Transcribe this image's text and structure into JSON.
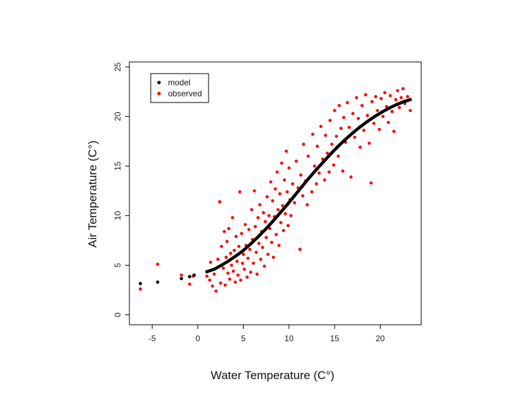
{
  "chart_data": {
    "type": "scatter",
    "title": "",
    "xlabel": "Water Temperature (C°)",
    "ylabel": "Air Temperature (C°)",
    "xlim": [
      -7.5,
      24.5
    ],
    "ylim": [
      -1,
      25.5
    ],
    "xticks": [
      -5,
      0,
      5,
      10,
      15,
      20
    ],
    "yticks": [
      0,
      5,
      10,
      15,
      20,
      25
    ],
    "grid": false,
    "legend": {
      "position": "top-left",
      "entries": [
        "model",
        "observed"
      ]
    },
    "colors": {
      "model": "#000000",
      "observed": "#ff0000"
    },
    "series": [
      {
        "name": "model",
        "color": "#000000",
        "points": [
          [
            -6.3,
            3.15
          ],
          [
            -4.4,
            3.3
          ],
          [
            -1.8,
            3.65
          ],
          [
            -0.9,
            3.85
          ],
          [
            -0.4,
            4.0
          ],
          [
            1.0,
            4.35
          ],
          [
            1.8,
            4.6
          ],
          [
            2.6,
            5.0
          ],
          [
            3.4,
            5.45
          ],
          [
            4.2,
            5.95
          ],
          [
            5.0,
            6.5
          ],
          [
            5.8,
            7.15
          ],
          [
            6.6,
            7.85
          ],
          [
            7.4,
            8.6
          ],
          [
            8.2,
            9.4
          ],
          [
            9.0,
            10.25
          ],
          [
            9.8,
            11.1
          ],
          [
            10.6,
            12.0
          ],
          [
            11.4,
            12.9
          ],
          [
            12.2,
            13.8
          ],
          [
            13.0,
            14.65
          ],
          [
            13.8,
            15.45
          ],
          [
            14.6,
            16.25
          ],
          [
            15.4,
            17.0
          ],
          [
            16.2,
            17.7
          ],
          [
            17.0,
            18.35
          ],
          [
            17.8,
            18.95
          ],
          [
            18.6,
            19.5
          ],
          [
            19.4,
            20.0
          ],
          [
            20.2,
            20.45
          ],
          [
            21.0,
            20.85
          ],
          [
            21.8,
            21.2
          ],
          [
            22.6,
            21.5
          ],
          [
            23.3,
            21.7
          ]
        ]
      },
      {
        "name": "observed",
        "color": "#ff0000",
        "points": [
          [
            -6.3,
            2.6
          ],
          [
            -4.4,
            5.1
          ],
          [
            -1.8,
            4.0
          ],
          [
            -0.9,
            3.1
          ],
          [
            -0.5,
            3.9
          ],
          [
            1.0,
            3.9
          ],
          [
            1.3,
            3.5
          ],
          [
            1.4,
            5.3
          ],
          [
            1.6,
            2.9
          ],
          [
            1.8,
            4.1
          ],
          [
            2.0,
            2.4
          ],
          [
            2.2,
            5.6
          ],
          [
            2.4,
            11.4
          ],
          [
            2.5,
            3.2
          ],
          [
            2.6,
            6.9
          ],
          [
            2.8,
            4.7
          ],
          [
            2.9,
            8.4
          ],
          [
            3.0,
            3.0
          ],
          [
            3.1,
            5.8
          ],
          [
            3.2,
            7.4
          ],
          [
            3.3,
            4.2
          ],
          [
            3.4,
            8.7
          ],
          [
            3.5,
            3.6
          ],
          [
            3.6,
            6.2
          ],
          [
            3.7,
            5.0
          ],
          [
            3.8,
            9.8
          ],
          [
            3.9,
            4.4
          ],
          [
            4.0,
            6.5
          ],
          [
            4.1,
            3.3
          ],
          [
            4.2,
            7.9
          ],
          [
            4.3,
            5.4
          ],
          [
            4.4,
            4.0
          ],
          [
            4.5,
            6.9
          ],
          [
            4.6,
            12.4
          ],
          [
            4.7,
            3.5
          ],
          [
            4.8,
            8.2
          ],
          [
            4.9,
            5.2
          ],
          [
            5.0,
            6.1
          ],
          [
            5.1,
            4.6
          ],
          [
            5.2,
            9.1
          ],
          [
            5.3,
            7.0
          ],
          [
            5.4,
            3.8
          ],
          [
            5.5,
            5.7
          ],
          [
            5.6,
            8.6
          ],
          [
            5.7,
            6.6
          ],
          [
            5.8,
            4.3
          ],
          [
            5.9,
            10.6
          ],
          [
            6.0,
            7.6
          ],
          [
            6.1,
            5.2
          ],
          [
            6.2,
            12.5
          ],
          [
            6.3,
            8.9
          ],
          [
            6.4,
            6.3
          ],
          [
            6.5,
            4.1
          ],
          [
            6.6,
            9.8
          ],
          [
            6.7,
            7.2
          ],
          [
            6.8,
            11.1
          ],
          [
            6.9,
            5.6
          ],
          [
            7.0,
            8.4
          ],
          [
            7.1,
            6.8
          ],
          [
            7.2,
            10.3
          ],
          [
            7.3,
            4.9
          ],
          [
            7.4,
            9.4
          ],
          [
            7.5,
            7.8
          ],
          [
            7.6,
            11.9
          ],
          [
            7.7,
            6.1
          ],
          [
            7.8,
            10.0
          ],
          [
            7.9,
            8.7
          ],
          [
            8.0,
            13.4
          ],
          [
            8.1,
            7.3
          ],
          [
            8.2,
            11.5
          ],
          [
            8.3,
            5.8
          ],
          [
            8.4,
            9.9
          ],
          [
            8.5,
            12.7
          ],
          [
            8.6,
            8.1
          ],
          [
            8.7,
            14.4
          ],
          [
            8.8,
            10.6
          ],
          [
            8.9,
            7.0
          ],
          [
            9.0,
            12.2
          ],
          [
            9.1,
            9.3
          ],
          [
            9.2,
            15.3
          ],
          [
            9.3,
            11.0
          ],
          [
            9.4,
            8.5
          ],
          [
            9.5,
            13.6
          ],
          [
            9.6,
            10.2
          ],
          [
            9.7,
            16.5
          ],
          [
            9.8,
            12.4
          ],
          [
            9.9,
            9.0
          ],
          [
            10.0,
            14.8
          ],
          [
            10.1,
            11.6
          ],
          [
            10.2,
            10.0
          ],
          [
            10.4,
            13.2
          ],
          [
            10.6,
            11.3
          ],
          [
            10.8,
            15.5
          ],
          [
            11.0,
            12.8
          ],
          [
            11.2,
            6.6
          ],
          [
            11.3,
            14.1
          ],
          [
            11.5,
            12.0
          ],
          [
            11.6,
            17.2
          ],
          [
            11.8,
            13.5
          ],
          [
            12.0,
            11.1
          ],
          [
            12.1,
            16.0
          ],
          [
            12.3,
            13.9
          ],
          [
            12.5,
            12.4
          ],
          [
            12.6,
            18.2
          ],
          [
            12.8,
            15.0
          ],
          [
            13.0,
            13.2
          ],
          [
            13.1,
            17.0
          ],
          [
            13.3,
            14.3
          ],
          [
            13.5,
            19.0
          ],
          [
            13.7,
            15.7
          ],
          [
            13.9,
            13.6
          ],
          [
            14.0,
            18.1
          ],
          [
            14.2,
            16.3
          ],
          [
            14.4,
            14.4
          ],
          [
            14.5,
            19.6
          ],
          [
            14.7,
            17.2
          ],
          [
            14.9,
            15.1
          ],
          [
            15.0,
            20.6
          ],
          [
            15.2,
            18.0
          ],
          [
            15.4,
            16.0
          ],
          [
            15.5,
            21.1
          ],
          [
            15.7,
            18.8
          ],
          [
            15.9,
            14.5
          ],
          [
            16.0,
            19.9
          ],
          [
            16.2,
            17.4
          ],
          [
            16.4,
            21.4
          ],
          [
            16.6,
            18.9
          ],
          [
            16.8,
            13.9
          ],
          [
            17.0,
            20.3
          ],
          [
            17.2,
            17.9
          ],
          [
            17.4,
            21.9
          ],
          [
            17.6,
            19.8
          ],
          [
            17.8,
            16.9
          ],
          [
            18.0,
            21.1
          ],
          [
            18.2,
            18.6
          ],
          [
            18.4,
            22.2
          ],
          [
            18.6,
            20.1
          ],
          [
            18.8,
            17.3
          ],
          [
            19.0,
            13.3
          ],
          [
            19.1,
            21.5
          ],
          [
            19.3,
            19.3
          ],
          [
            19.5,
            22.0
          ],
          [
            19.7,
            20.6
          ],
          [
            19.9,
            18.7
          ],
          [
            20.1,
            21.8
          ],
          [
            20.3,
            20.0
          ],
          [
            20.5,
            22.4
          ],
          [
            20.7,
            21.0
          ],
          [
            20.9,
            19.4
          ],
          [
            21.1,
            22.1
          ],
          [
            21.3,
            20.5
          ],
          [
            21.5,
            18.5
          ],
          [
            21.7,
            21.7
          ],
          [
            21.9,
            22.6
          ],
          [
            22.1,
            20.9
          ],
          [
            22.3,
            21.9
          ],
          [
            22.5,
            22.8
          ],
          [
            22.7,
            21.3
          ],
          [
            23.0,
            22.0
          ],
          [
            23.3,
            20.6
          ]
        ]
      }
    ]
  }
}
